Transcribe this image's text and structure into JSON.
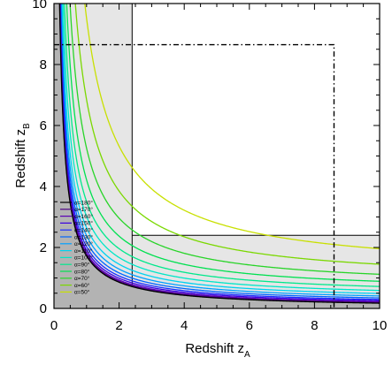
{
  "chart_data": {
    "type": "line",
    "title": "",
    "xlabel": "Redshift z",
    "xlabel_sub": "A",
    "ylabel": "Redshift z",
    "ylabel_sub": "B",
    "xlim": [
      0,
      10
    ],
    "ylim": [
      0,
      10
    ],
    "x_ticks": [
      0,
      2,
      4,
      6,
      8,
      10
    ],
    "y_ticks": [
      0,
      2,
      4,
      6,
      8,
      10
    ],
    "grid": false,
    "legend_placement": "bottom-left",
    "curve_model": "zB = k/zA + c",
    "series": [
      {
        "name": "α=180°",
        "color": "#000000",
        "k": 1.72,
        "c": 0.0
      },
      {
        "name": "α=170°",
        "color": "#4b0082",
        "k": 1.74,
        "c": 0.02
      },
      {
        "name": "α=160°",
        "color": "#5b00b5",
        "k": 1.78,
        "c": 0.04
      },
      {
        "name": "α=150°",
        "color": "#3a00e0",
        "k": 1.84,
        "c": 0.07
      },
      {
        "name": "α=140°",
        "color": "#1a2cff",
        "k": 1.93,
        "c": 0.1
      },
      {
        "name": "α=130°",
        "color": "#0064ff",
        "k": 2.05,
        "c": 0.14
      },
      {
        "name": "α=120°",
        "color": "#00a0ff",
        "k": 2.2,
        "c": 0.19
      },
      {
        "name": "α=110°",
        "color": "#00d2f0",
        "k": 2.4,
        "c": 0.25
      },
      {
        "name": "α=100°",
        "color": "#00e6c8",
        "k": 2.7,
        "c": 0.32
      },
      {
        "name": "α=90°",
        "color": "#00e88c",
        "k": 3.1,
        "c": 0.41
      },
      {
        "name": "α=80°",
        "color": "#00e050",
        "k": 3.7,
        "c": 0.52
      },
      {
        "name": "α=70°",
        "color": "#28d428",
        "k": 4.6,
        "c": 0.66
      },
      {
        "name": "α=60°",
        "color": "#7ad800",
        "k": 6.0,
        "c": 0.85
      },
      {
        "name": "α=50°",
        "color": "#c8e000",
        "k": 8.4,
        "c": 1.12
      }
    ],
    "shading": {
      "dark_color": "#b3b3b3",
      "light_color": "#e6e6e6",
      "boundary_series": "α=180°",
      "zA_cut": 2.4,
      "zB_cut": 2.4
    },
    "box": {
      "zA_max": 8.6,
      "zB_max": 8.65,
      "style": "dash-dot"
    }
  }
}
